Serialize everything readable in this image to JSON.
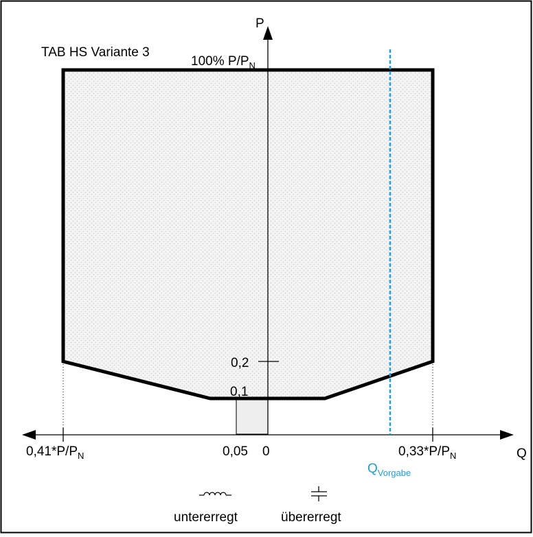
{
  "diagram": {
    "title": "TAB HS Variante 3",
    "p_axis_label": "P",
    "q_axis_label": "Q",
    "p_max_label": {
      "main": "100% P/P",
      "sub": "N"
    },
    "tick_p_02": "0,2",
    "tick_p_01": "0,1",
    "q_left_label": {
      "main": "0,41*P/P",
      "sub": "N"
    },
    "q_right_label": {
      "main": "0,33*P/P",
      "sub": "N"
    },
    "q_005_label": "0,05",
    "q_zero_label": "0",
    "q_vorgabe_label": {
      "main": "Q",
      "sub": "Vorgabe"
    },
    "under_excited_label": "untererregt",
    "over_excited_label": "übererregt",
    "colors": {
      "outline": "#000000",
      "fill": "#e6e6e6",
      "small_box_fill": "#f0f0f0",
      "q_vorgabe": "#1a9fe0",
      "frame": "#000000"
    }
  }
}
